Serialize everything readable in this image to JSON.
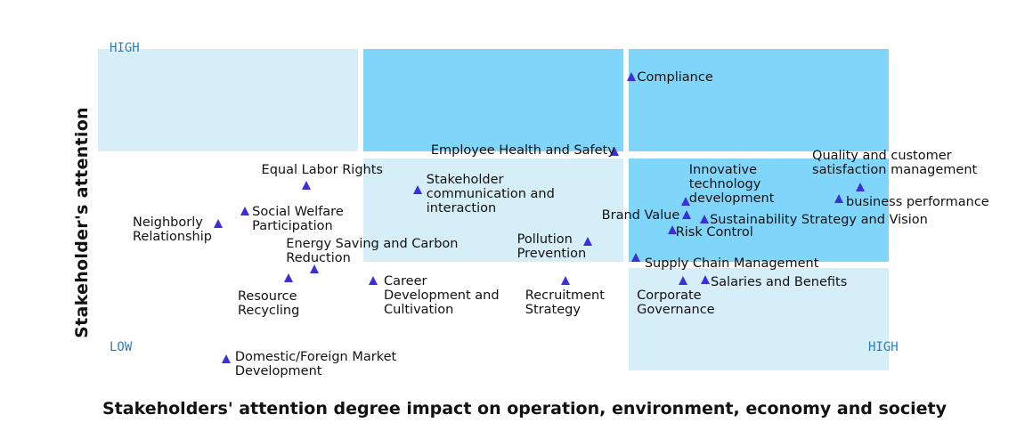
{
  "chart_data": {
    "type": "scatter",
    "title": "",
    "xlabel": "Stakeholders' attention degree impact on operation, environment, economy and society",
    "ylabel": "Stakeholder's attention",
    "axis_tags": {
      "high_y": "HIGH",
      "low": "LOW",
      "high_x": "HIGH"
    },
    "xlim": [
      0,
      100
    ],
    "ylim": [
      0,
      100
    ],
    "points": [
      {
        "label": "Compliance",
        "x": 67.5,
        "y": 91
      },
      {
        "label": "Employee Health and Safety",
        "x": 65.3,
        "y": 67.8
      },
      {
        "label": "Quality and customer satisfaction management",
        "x": 96.4,
        "y": 56.8
      },
      {
        "label": "business performance",
        "x": 93.7,
        "y": 53.2
      },
      {
        "label": "Innovative technology development",
        "x": 74.3,
        "y": 52.3
      },
      {
        "label": "Brand Value",
        "x": 74.4,
        "y": 48.1
      },
      {
        "label": "Sustainability Strategy and Vision",
        "x": 76.7,
        "y": 46.8
      },
      {
        "label": "Risk Control",
        "x": 72.6,
        "y": 43.6
      },
      {
        "label": "Supply Chain Management",
        "x": 68.0,
        "y": 35.0
      },
      {
        "label": "Corporate Governance",
        "x": 74.0,
        "y": 27.8
      },
      {
        "label": "Salaries and Benefits",
        "x": 76.8,
        "y": 28.0
      },
      {
        "label": "Pollution Prevention",
        "x": 61.9,
        "y": 40.0
      },
      {
        "label": "Recruitment Strategy",
        "x": 59.1,
        "y": 27.8
      },
      {
        "label": "Stakeholder communication and interaction",
        "x": 40.4,
        "y": 56.0
      },
      {
        "label": "Career Development and Cultivation",
        "x": 34.8,
        "y": 27.8
      },
      {
        "label": "Equal Labor Rights",
        "x": 26.3,
        "y": 57.3
      },
      {
        "label": "Social Welfare Participation",
        "x": 18.6,
        "y": 49.4
      },
      {
        "label": "Neighborly Relationship",
        "x": 15.2,
        "y": 45.5
      },
      {
        "label": "Energy Saving and Carbon Reduction",
        "x": 27.4,
        "y": 31.4
      },
      {
        "label": "Resource Recycling",
        "x": 24.1,
        "y": 28.6
      },
      {
        "label": "Domestic/Foreign Market Development",
        "x": 16.2,
        "y": 3.4
      }
    ]
  }
}
